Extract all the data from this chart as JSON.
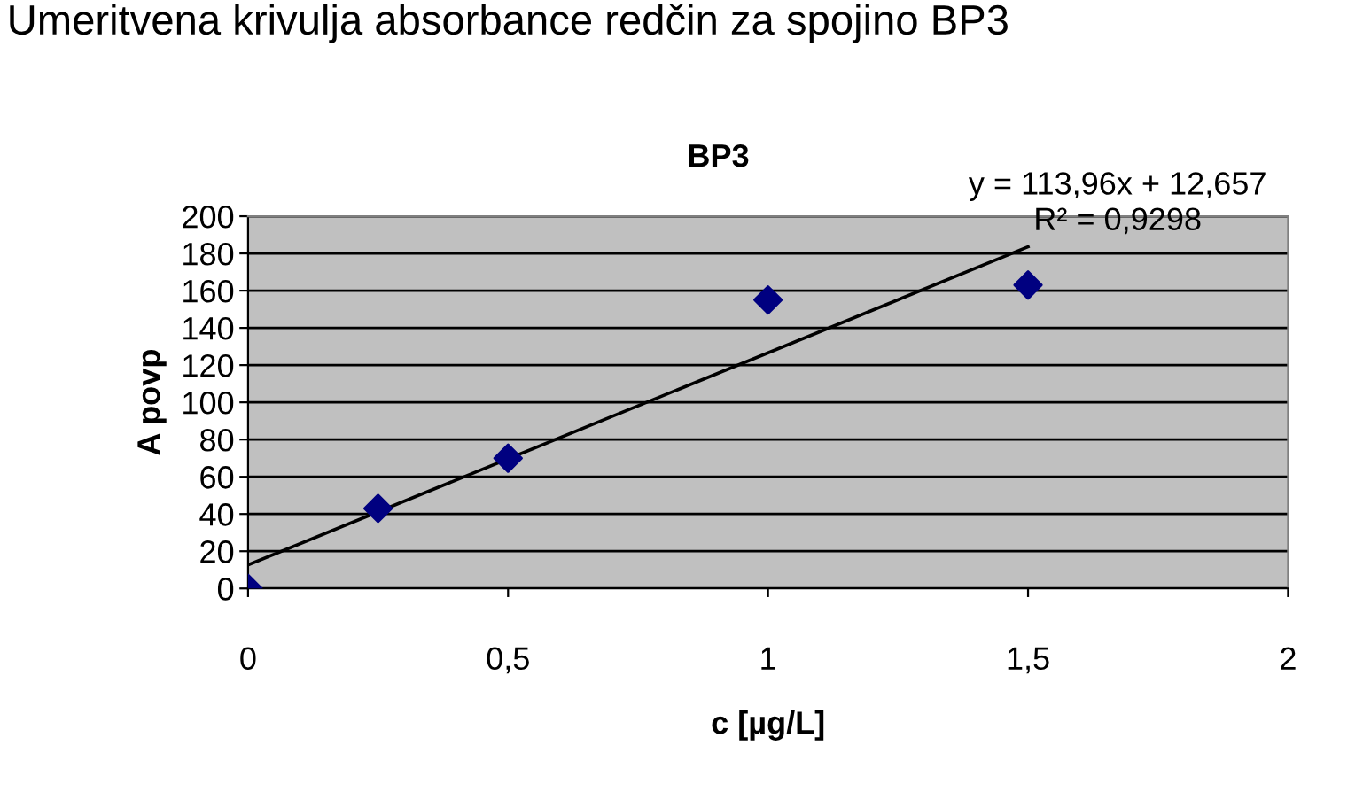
{
  "chart_data": {
    "type": "scatter",
    "title": "Umeritvena krivulja absorbance redčin za spojino BP3",
    "subtitle": "BP3",
    "xlabel": "c [µg/L]",
    "ylabel": "A povp",
    "annotations": [
      "y = 113,96x + 12,657",
      "R² = 0,9298"
    ],
    "x": [
      0,
      0.25,
      0.5,
      1,
      1.5
    ],
    "series": [
      {
        "color": "#000080",
        "values": [
          0,
          43,
          70,
          155,
          163
        ],
        "marker": "diamond"
      },
      {
        "type": "line",
        "color": "#000000",
        "x": [
          0,
          1.5
        ],
        "values": [
          12.657,
          183.597
        ]
      }
    ],
    "xlim": [
      0,
      2
    ],
    "ylim": [
      0,
      200
    ],
    "xticks": [
      0,
      {
        "value": 0.5,
        "label": "0,5"
      },
      1,
      {
        "value": 1.5,
        "label": "1,5"
      },
      2
    ],
    "yticks": [
      0,
      20,
      40,
      60,
      80,
      100,
      120,
      140,
      160,
      180,
      200
    ],
    "grid": "y",
    "legend": false
  }
}
